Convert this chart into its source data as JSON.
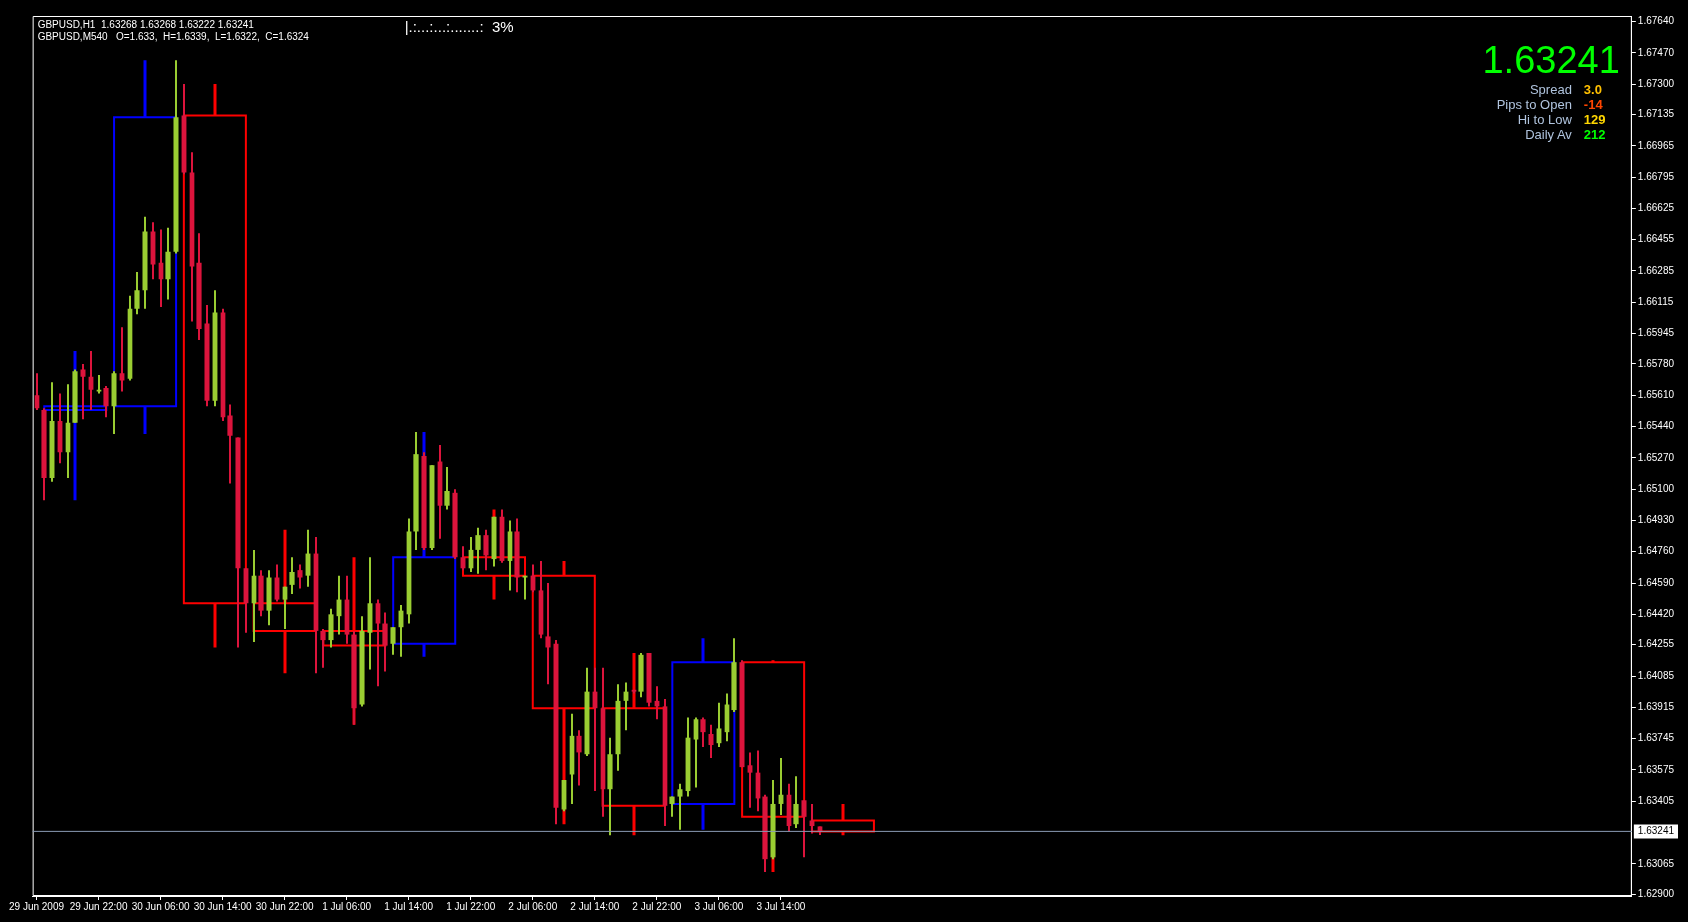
{
  "chart_data": {
    "type": "candlestick",
    "annotations": [
      "GBPUSD,H1  1.63268 1.63268 1.63222 1.63241",
      "GBPUSD,M540   O=1.633,  H=1.6339,  L=1.6322,  C=1.6324",
      "|.:...:...:.......:  3%",
      "1.63241",
      "Spread",
      "3.0",
      "Pips to Open",
      "-14",
      "Hi to Low",
      "129",
      "Daily Av",
      "212"
    ],
    "xlim": [
      "2009-06-29T13:30",
      "2009-07-08T03:45"
    ],
    "xticks": [
      {
        "value": "2009-06-29T14:00",
        "label": "29 Jun 2009"
      },
      {
        "value": "2009-06-29T22:00",
        "label": "29 Jun 22:00"
      },
      {
        "value": "2009-06-30T06:00",
        "label": "30 Jun 06:00"
      },
      {
        "value": "2009-06-30T14:00",
        "label": "30 Jun 14:00"
      },
      {
        "value": "2009-06-30T22:00",
        "label": "30 Jun 22:00"
      },
      {
        "value": "2009-07-01T06:00",
        "label": "1 Jul 06:00"
      },
      {
        "value": "2009-07-01T14:00",
        "label": "1 Jul 14:00"
      },
      {
        "value": "2009-07-01T22:00",
        "label": "1 Jul 22:00"
      },
      {
        "value": "2009-07-02T06:00",
        "label": "2 Jul 06:00"
      },
      {
        "value": "2009-07-02T14:00",
        "label": "2 Jul 14:00"
      },
      {
        "value": "2009-07-02T22:00",
        "label": "2 Jul 22:00"
      },
      {
        "value": "2009-07-03T06:00",
        "label": "3 Jul 06:00"
      },
      {
        "value": "2009-07-03T14:00",
        "label": "3 Jul 14:00"
      }
    ],
    "ylim": [
      1.6289,
      1.6767
    ],
    "yticks": [
      {
        "value": 1.6764,
        "label": "1.67640"
      },
      {
        "value": 1.6747,
        "label": "1.67470"
      },
      {
        "value": 1.673,
        "label": "1.67300"
      },
      1.67135,
      1.66965,
      1.66795,
      1.66625,
      1.66455,
      1.66285,
      1.66115,
      1.65945,
      {
        "value": 1.6578,
        "label": "1.65780"
      },
      {
        "value": 1.6561,
        "label": "1.65610"
      },
      {
        "value": 1.6544,
        "label": "1.65440"
      },
      {
        "value": 1.6527,
        "label": "1.65270"
      },
      {
        "value": 1.651,
        "label": "1.65100"
      },
      {
        "value": 1.6493,
        "label": "1.64930"
      },
      {
        "value": 1.6476,
        "label": "1.64760"
      },
      {
        "value": 1.6459,
        "label": "1.64590"
      },
      {
        "value": 1.6442,
        "label": "1.64420"
      },
      1.64255,
      1.64085,
      1.63915,
      1.63745,
      1.63575,
      1.63405,
      1.63065,
      {
        "value": 1.629,
        "label": "1.62900"
      }
    ],
    "ref_lines": [
      {
        "axis": "y",
        "value": 1.63241,
        "label": "1.63241",
        "color": "#8a9bb4"
      }
    ],
    "series": [
      {
        "x": [
          "2009-06-29T14:00",
          "2009-06-29T15:00",
          "2009-06-29T16:00",
          "2009-06-29T17:00",
          "2009-06-29T18:00",
          "2009-06-29T19:00",
          "2009-06-29T20:00",
          "2009-06-29T21:00",
          "2009-06-29T22:00",
          "2009-06-29T23:00",
          "2009-06-30T00:00",
          "2009-06-30T01:00",
          "2009-06-30T02:00",
          "2009-06-30T03:00",
          "2009-06-30T04:00",
          "2009-06-30T05:00",
          "2009-06-30T06:00",
          "2009-06-30T07:00",
          "2009-06-30T08:00",
          "2009-06-30T09:00",
          "2009-06-30T10:00",
          "2009-06-30T11:00",
          "2009-06-30T12:00",
          "2009-06-30T13:00",
          "2009-06-30T14:00",
          "2009-06-30T15:00",
          "2009-06-30T16:00",
          "2009-06-30T17:00",
          "2009-06-30T18:00",
          "2009-06-30T19:00",
          "2009-06-30T20:00",
          "2009-06-30T21:00",
          "2009-06-30T22:00",
          "2009-06-30T23:00",
          "2009-07-01T00:00",
          "2009-07-01T01:00",
          "2009-07-01T02:00",
          "2009-07-01T03:00",
          "2009-07-01T04:00",
          "2009-07-01T05:00",
          "2009-07-01T06:00",
          "2009-07-01T07:00",
          "2009-07-01T08:00",
          "2009-07-01T09:00",
          "2009-07-01T10:00",
          "2009-07-01T11:00",
          "2009-07-01T12:00",
          "2009-07-01T13:00",
          "2009-07-01T14:00",
          "2009-07-01T15:00",
          "2009-07-01T16:00",
          "2009-07-01T17:00",
          "2009-07-01T18:00",
          "2009-07-01T19:00",
          "2009-07-01T20:00",
          "2009-07-01T21:00",
          "2009-07-01T22:00",
          "2009-07-01T23:00",
          "2009-07-02T00:00",
          "2009-07-02T01:00",
          "2009-07-02T02:00",
          "2009-07-02T03:00",
          "2009-07-02T04:00",
          "2009-07-02T05:00",
          "2009-07-02T06:00",
          "2009-07-02T07:00",
          "2009-07-02T08:00",
          "2009-07-02T09:00",
          "2009-07-02T10:00",
          "2009-07-02T11:00",
          "2009-07-02T12:00",
          "2009-07-02T13:00",
          "2009-07-02T14:00",
          "2009-07-02T15:00",
          "2009-07-02T16:00",
          "2009-07-02T17:00",
          "2009-07-02T18:00",
          "2009-07-02T19:00",
          "2009-07-02T20:00",
          "2009-07-02T21:00",
          "2009-07-02T22:00",
          "2009-07-02T23:00",
          "2009-07-03T00:00",
          "2009-07-03T01:00",
          "2009-07-03T02:00",
          "2009-07-03T03:00",
          "2009-07-03T04:00",
          "2009-07-03T05:00",
          "2009-07-03T06:00",
          "2009-07-03T07:00",
          "2009-07-03T08:00",
          "2009-07-03T09:00",
          "2009-07-03T10:00",
          "2009-07-03T11:00",
          "2009-07-03T12:00",
          "2009-07-03T13:00",
          "2009-07-03T14:00",
          "2009-07-03T15:00",
          "2009-07-03T16:00",
          "2009-07-03T17:00",
          "2009-07-03T18:00",
          "2009-07-03T19:00"
        ],
        "ohlc": [
          [
            1.6561,
            1.6573,
            1.6553,
            1.6554
          ],
          [
            1.6553,
            1.6554,
            1.6504,
            1.6516
          ],
          [
            1.6516,
            1.6568,
            1.6514,
            1.6547
          ],
          [
            1.6547,
            1.6562,
            1.6524,
            1.653
          ],
          [
            1.653,
            1.6567,
            1.6516,
            1.6546
          ],
          [
            1.6546,
            1.6575,
            1.6546,
            1.6574
          ],
          [
            1.6575,
            1.6578,
            1.6548,
            1.6571
          ],
          [
            1.6571,
            1.6585,
            1.6553,
            1.6564
          ],
          [
            1.6563,
            1.6572,
            1.6562,
            1.6564
          ],
          [
            1.6565,
            1.6566,
            1.6549,
            1.6555
          ],
          [
            1.6555,
            1.6574,
            1.654,
            1.6573
          ],
          [
            1.6573,
            1.6598,
            1.6563,
            1.6569
          ],
          [
            1.657,
            1.6615,
            1.6569,
            1.6608
          ],
          [
            1.6608,
            1.6628,
            1.6605,
            1.6618
          ],
          [
            1.6618,
            1.6658,
            1.6608,
            1.665
          ],
          [
            1.665,
            1.6655,
            1.6624,
            1.6632
          ],
          [
            1.6633,
            1.6651,
            1.6609,
            1.6624
          ],
          [
            1.6624,
            1.6652,
            1.6613,
            1.6639
          ],
          [
            1.6639,
            1.6743,
            1.6638,
            1.6712
          ],
          [
            1.6713,
            1.673,
            1.6681,
            1.6682
          ],
          [
            1.6682,
            1.6693,
            1.6601,
            1.6631
          ],
          [
            1.6633,
            1.6649,
            1.6591,
            1.6597
          ],
          [
            1.66,
            1.661,
            1.6555,
            1.6558
          ],
          [
            1.6558,
            1.6618,
            1.6555,
            1.6606
          ],
          [
            1.6606,
            1.6608,
            1.6547,
            1.6549
          ],
          [
            1.655,
            1.6556,
            1.6513,
            1.6539
          ],
          [
            1.6538,
            1.6538,
            1.6424,
            1.6467
          ],
          [
            1.6467,
            1.6467,
            1.6432,
            1.6448
          ],
          [
            1.6448,
            1.6477,
            1.6427,
            1.6463
          ],
          [
            1.6463,
            1.6466,
            1.6441,
            1.6444
          ],
          [
            1.6444,
            1.6466,
            1.6436,
            1.6462
          ],
          [
            1.6462,
            1.6469,
            1.6449,
            1.645
          ],
          [
            1.645,
            1.6457,
            1.6434,
            1.6457
          ],
          [
            1.6458,
            1.6473,
            1.6453,
            1.6465
          ],
          [
            1.6466,
            1.6469,
            1.6456,
            1.6462
          ],
          [
            1.6463,
            1.6488,
            1.6457,
            1.6475
          ],
          [
            1.6475,
            1.6484,
            1.641,
            1.6433
          ],
          [
            1.6433,
            1.6434,
            1.6413,
            1.6428
          ],
          [
            1.6428,
            1.6445,
            1.6424,
            1.6442
          ],
          [
            1.6441,
            1.6463,
            1.6431,
            1.645
          ],
          [
            1.645,
            1.6463,
            1.6426,
            1.6431
          ],
          [
            1.6431,
            1.6433,
            1.6382,
            1.6391
          ],
          [
            1.6393,
            1.6441,
            1.6392,
            1.6433
          ],
          [
            1.6432,
            1.6473,
            1.6412,
            1.6448
          ],
          [
            1.6448,
            1.645,
            1.6403,
            1.6437
          ],
          [
            1.6437,
            1.6443,
            1.6411,
            1.6425
          ],
          [
            1.6426,
            1.6435,
            1.642,
            1.6435
          ],
          [
            1.6435,
            1.6447,
            1.6419,
            1.6444
          ],
          [
            1.6442,
            1.6494,
            1.6437,
            1.6487
          ],
          [
            1.6487,
            1.6541,
            1.6477,
            1.6529
          ],
          [
            1.6528,
            1.653,
            1.6477,
            1.6478
          ],
          [
            1.6478,
            1.6523,
            1.6477,
            1.6523
          ],
          [
            1.6525,
            1.6534,
            1.6483,
            1.6501
          ],
          [
            1.6501,
            1.6522,
            1.6499,
            1.6509
          ],
          [
            1.6508,
            1.651,
            1.6472,
            1.6473
          ],
          [
            1.6473,
            1.6479,
            1.6466,
            1.6467
          ],
          [
            1.6467,
            1.6484,
            1.6465,
            1.6477
          ],
          [
            1.6477,
            1.6489,
            1.6464,
            1.6485
          ],
          [
            1.6485,
            1.6488,
            1.6466,
            1.6474
          ],
          [
            1.6472,
            1.6495,
            1.6468,
            1.6495
          ],
          [
            1.6495,
            1.6499,
            1.647,
            1.6471
          ],
          [
            1.6471,
            1.6493,
            1.6455,
            1.6487
          ],
          [
            1.6487,
            1.6494,
            1.6454,
            1.6462
          ],
          [
            1.6462,
            1.6463,
            1.645,
            1.6463
          ],
          [
            1.6463,
            1.6469,
            1.6454,
            1.6455
          ],
          [
            1.6455,
            1.6471,
            1.6429,
            1.6431
          ],
          [
            1.643,
            1.6459,
            1.6404,
            1.6424
          ],
          [
            1.6426,
            1.6428,
            1.6328,
            1.6337
          ],
          [
            1.6336,
            1.6352,
            1.6335,
            1.6352
          ],
          [
            1.6355,
            1.6388,
            1.6339,
            1.6376
          ],
          [
            1.6376,
            1.6379,
            1.6349,
            1.6367
          ],
          [
            1.6366,
            1.6413,
            1.6365,
            1.64
          ],
          [
            1.64,
            1.6413,
            1.6346,
            1.6391
          ],
          [
            1.6391,
            1.6413,
            1.6332,
            1.6347
          ],
          [
            1.6347,
            1.6375,
            1.6322,
            1.6366
          ],
          [
            1.6366,
            1.6404,
            1.6357,
            1.6395
          ],
          [
            1.6395,
            1.6405,
            1.6379,
            1.64
          ],
          [
            1.6401,
            1.6401,
            1.6399,
            1.64
          ],
          [
            1.64,
            1.6421,
            1.6397,
            1.642
          ],
          [
            1.6421,
            1.6421,
            1.6392,
            1.6394
          ],
          [
            1.6395,
            1.6403,
            1.6385,
            1.6392
          ],
          [
            1.6392,
            1.6396,
            1.6327,
            1.6338
          ],
          [
            1.6339,
            1.6343,
            1.6332,
            1.6343
          ],
          [
            1.6343,
            1.635,
            1.6325,
            1.6347
          ],
          [
            1.6346,
            1.6386,
            1.6343,
            1.6375
          ],
          [
            1.6374,
            1.6386,
            1.6348,
            1.6385
          ],
          [
            1.6385,
            1.6386,
            1.637,
            1.6378
          ],
          [
            1.6377,
            1.6382,
            1.6364,
            1.6371
          ],
          [
            1.6372,
            1.6394,
            1.637,
            1.638
          ],
          [
            1.6378,
            1.6399,
            1.6373,
            1.6393
          ],
          [
            1.639,
            1.6429,
            1.6389,
            1.6416
          ],
          [
            1.6416,
            1.6417,
            1.6359,
            1.6359
          ],
          [
            1.636,
            1.6367,
            1.6337,
            1.6356
          ],
          [
            1.6356,
            1.6368,
            1.6335,
            1.6342
          ],
          [
            1.6343,
            1.6344,
            1.6302,
            1.6309
          ],
          [
            1.631,
            1.6352,
            1.6309,
            1.6339
          ],
          [
            1.6339,
            1.6364,
            1.6333,
            1.6344
          ],
          [
            1.6344,
            1.635,
            1.6324,
            1.6327
          ],
          [
            1.6328,
            1.6354,
            1.6326,
            1.6339
          ],
          [
            1.6341,
            1.6341,
            1.631,
            1.6332
          ],
          [
            1.633,
            1.6339,
            1.6323,
            1.6327
          ],
          [
            1.63268,
            1.63268,
            1.63222,
            1.63241
          ]
        ],
        "colors": [
          "#dc143c",
          "#dc143c",
          "#9acd32",
          "#dc143c",
          "#9acd32",
          "#9acd32",
          "#dc143c",
          "#dc143c",
          "#9acd32",
          "#dc143c",
          "#9acd32",
          "#dc143c",
          "#9acd32",
          "#9acd32",
          "#9acd32",
          "#dc143c",
          "#dc143c",
          "#9acd32",
          "#9acd32",
          "#dc143c",
          "#dc143c",
          "#dc143c",
          "#dc143c",
          "#9acd32",
          "#dc143c",
          "#dc143c",
          "#dc143c",
          "#dc143c",
          "#9acd32",
          "#dc143c",
          "#9acd32",
          "#dc143c",
          "#9acd32",
          "#9acd32",
          "#dc143c",
          "#9acd32",
          "#dc143c",
          "#dc143c",
          "#9acd32",
          "#9acd32",
          "#dc143c",
          "#dc143c",
          "#9acd32",
          "#9acd32",
          "#dc143c",
          "#dc143c",
          "#9acd32",
          "#9acd32",
          "#9acd32",
          "#9acd32",
          "#dc143c",
          "#9acd32",
          "#dc143c",
          "#9acd32",
          "#dc143c",
          "#dc143c",
          "#9acd32",
          "#9acd32",
          "#dc143c",
          "#9acd32",
          "#dc143c",
          "#9acd32",
          "#dc143c",
          "#9acd32",
          "#dc143c",
          "#dc143c",
          "#dc143c",
          "#dc143c",
          "#9acd32",
          "#9acd32",
          "#dc143c",
          "#9acd32",
          "#dc143c",
          "#dc143c",
          "#9acd32",
          "#9acd32",
          "#9acd32",
          "#dc143c",
          "#9acd32",
          "#dc143c",
          "#dc143c",
          "#dc143c",
          "#9acd32",
          "#9acd32",
          "#9acd32",
          "#9acd32",
          "#dc143c",
          "#dc143c",
          "#9acd32",
          "#9acd32",
          "#9acd32",
          "#dc143c",
          "#dc143c",
          "#dc143c",
          "#dc143c",
          "#9acd32",
          "#9acd32",
          "#dc143c",
          "#9acd32",
          "#dc143c",
          "#dc143c",
          "#dc143c"
        ]
      },
      {
        "line_style": "solid",
        "x": [
          "2009-06-29T19:00",
          "2009-06-30T04:00",
          "2009-06-30T13:00",
          "2009-06-30T22:00",
          "2009-07-01T07:00",
          "2009-07-01T16:00",
          "2009-07-02T01:00",
          "2009-07-02T10:00",
          "2009-07-02T19:00",
          "2009-07-03T04:00",
          "2009-07-03T13:00",
          "2009-07-03T22:00"
        ],
        "ohlc": [
          [
            1.6553,
            1.6585,
            1.6504,
            1.6555
          ],
          [
            1.6555,
            1.6743,
            1.654,
            1.6712
          ],
          [
            1.6713,
            1.673,
            1.6424,
            1.6448
          ],
          [
            1.6448,
            1.6488,
            1.641,
            1.6433
          ],
          [
            1.6433,
            1.6473,
            1.6382,
            1.6425
          ],
          [
            1.6426,
            1.6541,
            1.6419,
            1.6473
          ],
          [
            1.6473,
            1.6499,
            1.645,
            1.6463
          ],
          [
            1.6463,
            1.6471,
            1.6328,
            1.6391
          ],
          [
            1.6391,
            1.6421,
            1.6322,
            1.6338
          ],
          [
            1.6339,
            1.6429,
            1.6325,
            1.6416
          ],
          [
            1.6416,
            1.6417,
            1.6302,
            1.6332
          ],
          [
            1.633,
            1.6339,
            1.6322,
            1.6324
          ]
        ],
        "colors": [
          "#0000ff",
          "#0000ff",
          "#ff0000",
          "#ff0000",
          "#ff0000",
          "#0000ff",
          "#ff0000",
          "#ff0000",
          "#ff0000",
          "#0000ff",
          "#ff0000",
          "#ff0000"
        ]
      }
    ]
  }
}
